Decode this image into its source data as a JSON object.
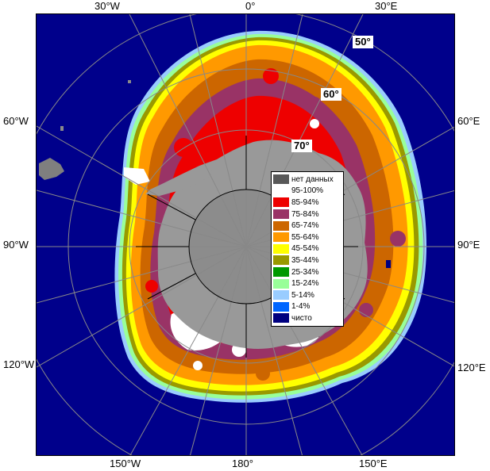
{
  "map": {
    "longitude_labels": {
      "top": [
        "30°W",
        "0°",
        "30°E"
      ],
      "bottom": [
        "150°W",
        "180°",
        "150°E"
      ],
      "left": [
        "60°W",
        "90°W",
        "120°W"
      ],
      "right": [
        "60°E",
        "90°E",
        "120°E"
      ]
    },
    "latitude_labels": [
      "50°",
      "60°",
      "70°"
    ],
    "legend": [
      {
        "label": "нет данных",
        "color": "#585858"
      },
      {
        "label": "95-100%",
        "color": "#ffffff"
      },
      {
        "label": "85-94%",
        "color": "#ee0000"
      },
      {
        "label": "75-84%",
        "color": "#993366"
      },
      {
        "label": "65-74%",
        "color": "#cc6600"
      },
      {
        "label": "55-64%",
        "color": "#ff9900"
      },
      {
        "label": "45-54%",
        "color": "#ffff00"
      },
      {
        "label": "35-44%",
        "color": "#999900"
      },
      {
        "label": "25-34%",
        "color": "#009900"
      },
      {
        "label": "15-24%",
        "color": "#99ff99"
      },
      {
        "label": "5-14%",
        "color": "#99ccff"
      },
      {
        "label": "1-4%",
        "color": "#0066ff"
      },
      {
        "label": "чисто",
        "color": "#000080"
      }
    ],
    "colors": {
      "ocean": "#00008b",
      "land": "#999999",
      "graticule": "#888888"
    }
  }
}
